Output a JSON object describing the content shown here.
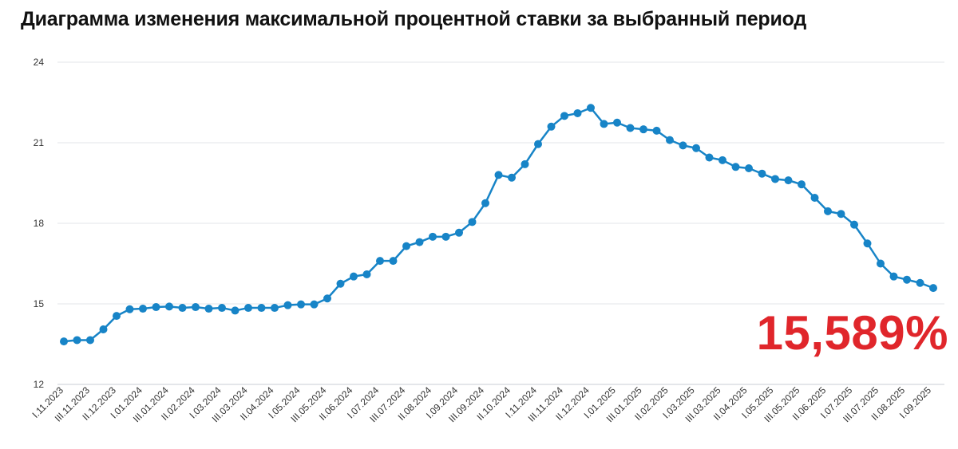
{
  "title": "Диаграмма изменения максимальной процентной ставки за выбранный период",
  "current_value": "15,589%",
  "colors": {
    "line": "#1784c7",
    "point": "#1784c7",
    "grid": "#e3e6ea",
    "accent": "#e0262b"
  },
  "chart_data": {
    "type": "line",
    "title": "Диаграмма изменения максимальной процентной ставки за выбранный период",
    "xlabel": "",
    "ylabel": "",
    "ylim": [
      12,
      24
    ],
    "yticks": [
      12,
      15,
      18,
      21,
      24
    ],
    "grid": true,
    "tick_labels": [
      "I.11.2023",
      "III.11.2023",
      "II.12.2023",
      "I.01.2024",
      "III.01.2024",
      "II.02.2024",
      "I.03.2024",
      "III.03.2024",
      "II.04.2024",
      "I.05.2024",
      "III.05.2024",
      "II.06.2024",
      "I.07.2024",
      "III.07.2024",
      "II.08.2024",
      "I.09.2024",
      "III.09.2024",
      "II.10.2024",
      "I.11.2024",
      "III.11.2024",
      "II.12.2024",
      "I.01.2025",
      "III.01.2025",
      "II.02.2025",
      "I.03.2025",
      "III.03.2025",
      "II.04.2025",
      "I.05.2025",
      "III.05.2025",
      "II.06.2025",
      "I.07.2025",
      "III.07.2025",
      "II.08.2025",
      "I.09.2025"
    ],
    "series": [
      {
        "values": [
          13.6,
          13.65,
          13.65,
          14.05,
          14.55,
          14.8,
          14.82,
          14.88,
          14.9,
          14.85,
          14.88,
          14.82,
          14.85,
          14.75,
          14.85,
          14.85,
          14.85,
          14.95,
          14.98,
          14.98,
          15.2,
          15.75,
          16.02,
          16.1,
          16.6,
          16.6,
          17.15,
          17.3,
          17.5,
          17.5,
          17.65,
          18.05,
          18.75,
          19.8,
          19.7,
          20.2,
          20.95,
          21.6,
          22.0,
          22.1,
          22.3,
          21.7,
          21.75,
          21.55,
          21.5,
          21.45,
          21.1,
          20.9,
          20.8,
          20.45,
          20.35,
          20.1,
          20.05,
          19.85,
          19.65,
          19.6,
          19.45,
          18.95,
          18.45,
          18.35,
          17.95,
          17.25,
          16.5,
          16.02,
          15.9,
          15.78,
          15.59
        ]
      }
    ]
  }
}
